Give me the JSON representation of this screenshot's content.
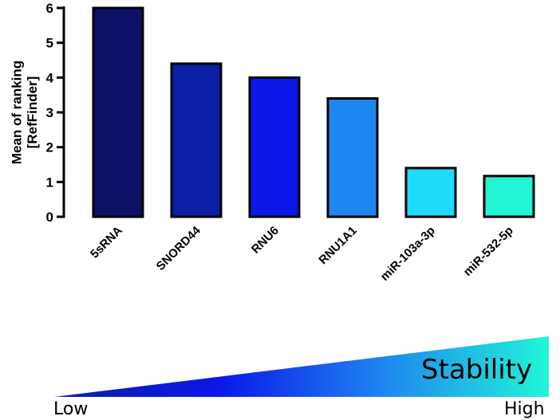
{
  "chart_data": {
    "type": "bar",
    "ylabel": "Mean of ranking\n[RefFinder]",
    "xlabel": "",
    "title": "",
    "ylim": [
      0,
      6
    ],
    "yticks": [
      0,
      1,
      2,
      3,
      4,
      5,
      6
    ],
    "categories": [
      "5sRNA",
      "SNORD44",
      "RNU6",
      "RNU1A1",
      "miR-103a-3p",
      "miR-532-5p"
    ],
    "values": [
      6.0,
      4.4,
      4.0,
      3.4,
      1.4,
      1.17
    ],
    "colors": [
      "#0d1166",
      "#0a1fa6",
      "#0b18e8",
      "#1e86f0",
      "#1edbfb",
      "#22f5d6"
    ],
    "grid": false
  },
  "stability_legend": {
    "label": "Stability",
    "low": "Low",
    "high": "High",
    "gradient_colors": [
      "#0a1fa6",
      "#0b18e8",
      "#1e86f0",
      "#22f5d6"
    ]
  }
}
